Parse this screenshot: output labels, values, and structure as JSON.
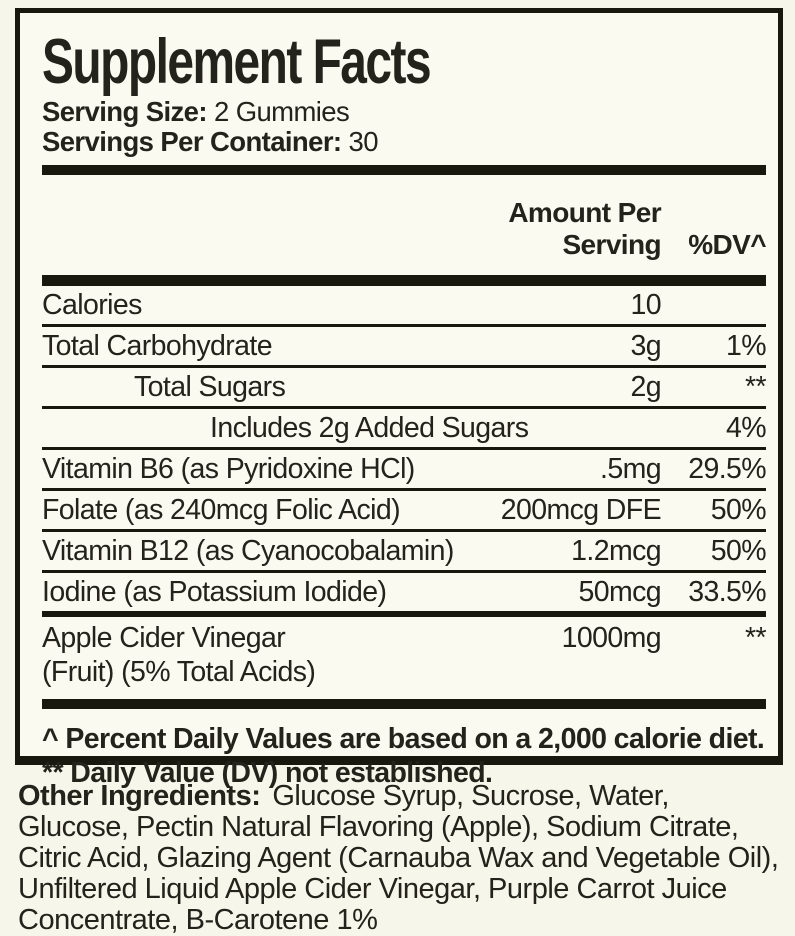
{
  "panel": {
    "title": "Supplement Facts",
    "serving_size_label": "Serving Size:",
    "serving_size_value": "2 Gummies",
    "servings_per_container_label": "Servings Per Container:",
    "servings_per_container_value": "30",
    "header": {
      "amount": "Amount Per Serving",
      "dv": "%DV^"
    },
    "rows": [
      {
        "label": "Calories",
        "amount": "10",
        "dv": ""
      },
      {
        "label": "Total Carbohydrate",
        "amount": "3g",
        "dv": "1%"
      },
      {
        "label": "Total Sugars",
        "amount": "2g",
        "dv": "**"
      },
      {
        "label": "Includes 2g Added Sugars",
        "amount": "",
        "dv": "4%"
      },
      {
        "label": "Vitamin B6 (as Pyridoxine HCl)",
        "amount": ".5mg",
        "dv": "29.5%"
      },
      {
        "label": "Folate (as 240mcg Folic Acid)",
        "amount": "200mcg DFE",
        "dv": "50%"
      },
      {
        "label": "Vitamin B12 (as Cyanocobalamin)",
        "amount": "1.2mcg",
        "dv": "50%"
      },
      {
        "label": "Iodine (as Potassium Iodide)",
        "amount": "50mcg",
        "dv": "33.5%"
      },
      {
        "label": "Apple Cider Vinegar",
        "label_line2": "(Fruit) (5% Total Acids)",
        "amount": "1000mg",
        "dv": "**"
      }
    ],
    "footnotes": [
      "^ Percent Daily Values are based on a 2,000 calorie diet.",
      "** Daily Value (DV) not established."
    ]
  },
  "other_ingredients": {
    "label": "Other Ingredients:",
    "text": "Glucose Syrup, Sucrose, Water, Glucose, Pectin Natural Flavoring (Apple), Sodium Citrate, Citric Acid, Glazing Agent (Carnauba Wax and Vegetable Oil), Unfiltered Liquid Apple Cider Vinegar, Purple Carrot Juice Concentrate, B-Carotene 1%"
  },
  "colors": {
    "ink": "#23231b",
    "rule": "#18180f",
    "background": "#f7f6ea"
  }
}
